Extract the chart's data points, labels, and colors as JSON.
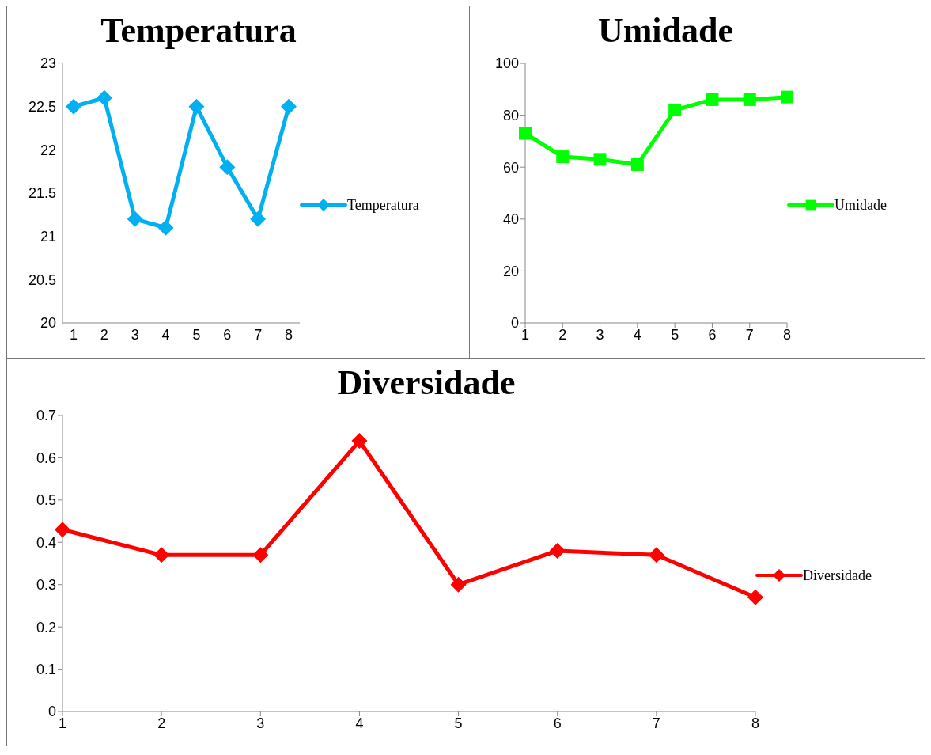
{
  "chart_data": [
    {
      "type": "line",
      "title": "Temperatura",
      "categories": [
        "1",
        "2",
        "3",
        "4",
        "5",
        "6",
        "7",
        "8"
      ],
      "series": [
        {
          "name": "Temperatura",
          "color": "#00b0f0",
          "values": [
            22.5,
            22.6,
            21.2,
            21.1,
            22.5,
            21.8,
            21.2,
            22.5
          ]
        }
      ],
      "ylim": [
        20,
        23
      ],
      "yticks": [
        20,
        20.5,
        21,
        21.5,
        22,
        22.5,
        23
      ],
      "legend": "right",
      "marker": "diamond",
      "grid": false
    },
    {
      "type": "line",
      "title": "Umidade",
      "categories": [
        "1",
        "2",
        "3",
        "4",
        "5",
        "6",
        "7",
        "8"
      ],
      "series": [
        {
          "name": "Umidade",
          "color": "#00ff00",
          "values": [
            73,
            64,
            63,
            61,
            82,
            86,
            86,
            87
          ]
        }
      ],
      "ylim": [
        0,
        100
      ],
      "yticks": [
        0,
        20,
        40,
        60,
        80,
        100
      ],
      "legend": "right",
      "marker": "square",
      "grid": false
    },
    {
      "type": "line",
      "title": "Diversidade",
      "categories": [
        "1",
        "2",
        "3",
        "4",
        "5",
        "6",
        "7",
        "8"
      ],
      "series": [
        {
          "name": "Diversidade",
          "color": "#ff0000",
          "values": [
            0.43,
            0.37,
            0.37,
            0.64,
            0.3,
            0.38,
            0.37,
            0.27
          ]
        }
      ],
      "ylim": [
        0,
        0.7
      ],
      "yticks": [
        0,
        0.1,
        0.2,
        0.3,
        0.4,
        0.5,
        0.6,
        0.7
      ],
      "legend": "right",
      "marker": "diamond",
      "grid": false
    }
  ]
}
